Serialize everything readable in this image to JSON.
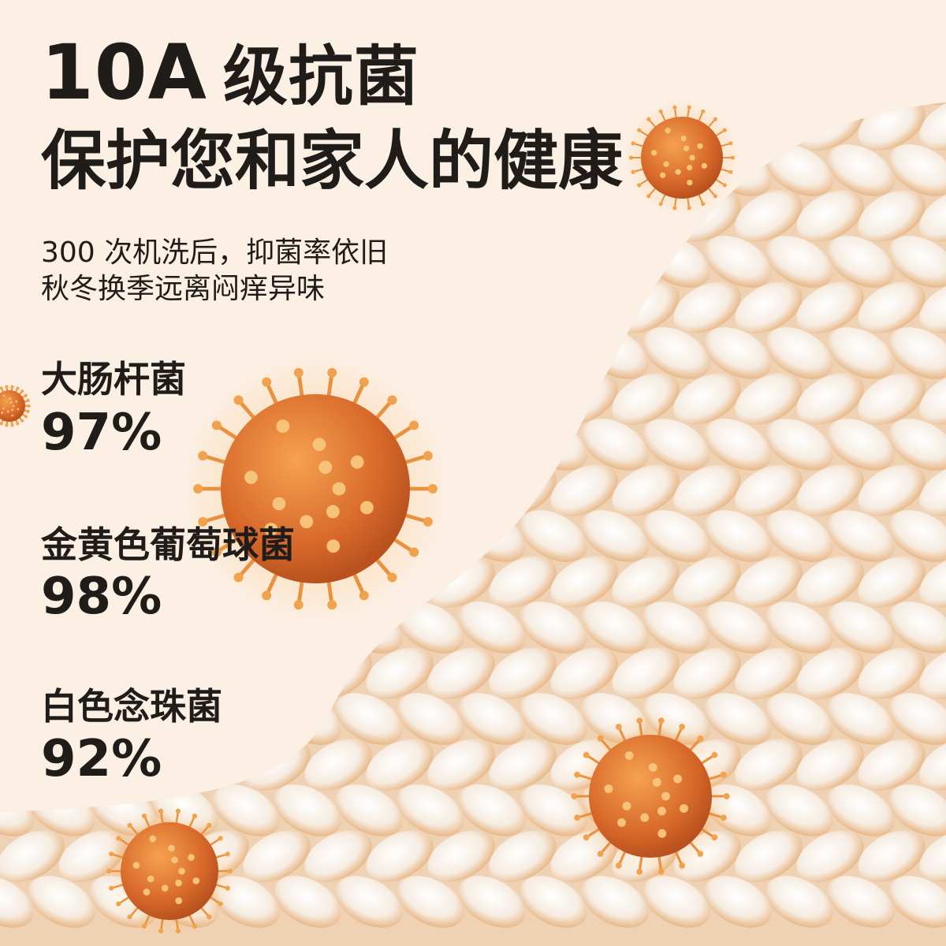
{
  "headline": {
    "prefix": "10A",
    "title_line1": "级抗菌",
    "title_line2": "保护您和家人的健康"
  },
  "subtitle": {
    "line1": "300 次机洗后，抑菌率依旧",
    "line2": "秋冬换季远离闷痒异味"
  },
  "stats": [
    {
      "name": "大肠杆菌",
      "rate": "97%"
    },
    {
      "name": "金黄色葡萄球菌",
      "rate": "98%"
    },
    {
      "name": "白色念珠菌",
      "rate": "92%"
    }
  ],
  "colors": {
    "background": "#fcefe3",
    "text": "#1f1c1a",
    "virus": "#e07a2c",
    "fabric": "#fbf4ec"
  }
}
